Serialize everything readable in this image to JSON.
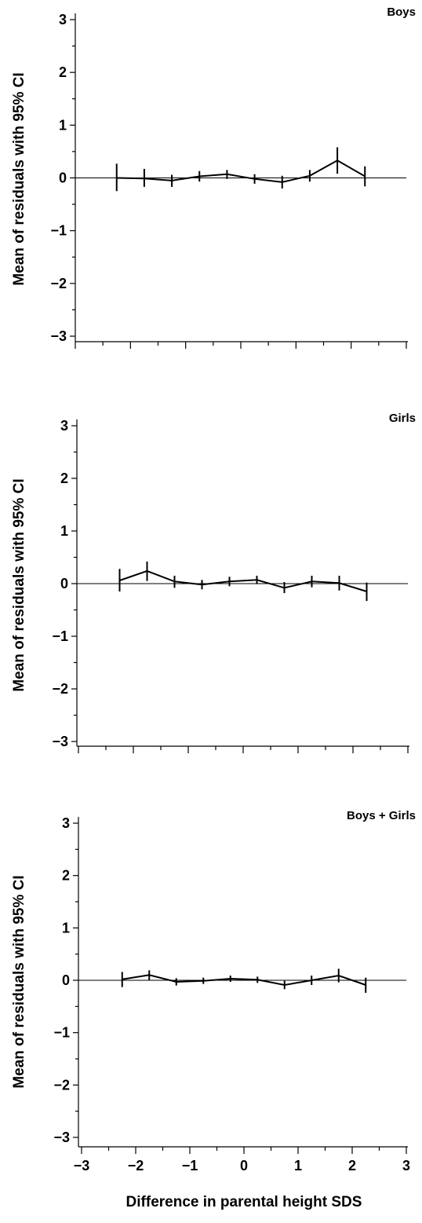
{
  "chart_data": [
    {
      "type": "line",
      "title": "Boys",
      "ylabel": "Mean of residuals with 95% CI",
      "xlabel": "",
      "xlim": [
        -3,
        3
      ],
      "ylim": [
        -3,
        3
      ],
      "yticks": [
        "3",
        "2",
        "1",
        "0",
        "−1",
        "−2",
        "−3"
      ],
      "xticks": [],
      "reference_line_y": 0,
      "series": [
        {
          "x": [
            -2.25,
            -1.75,
            -1.25,
            -0.75,
            -0.25,
            0.25,
            0.75,
            1.25,
            1.75,
            2.25
          ],
          "mean": [
            0.0,
            -0.01,
            -0.05,
            0.03,
            0.07,
            -0.02,
            -0.08,
            0.04,
            0.33,
            0.03
          ],
          "ci_low": [
            -0.25,
            -0.17,
            -0.17,
            -0.07,
            -0.02,
            -0.11,
            -0.2,
            -0.07,
            0.08,
            -0.16
          ],
          "ci_high": [
            0.27,
            0.17,
            0.06,
            0.13,
            0.15,
            0.07,
            0.04,
            0.15,
            0.58,
            0.22
          ]
        }
      ]
    },
    {
      "type": "line",
      "title": "Girls",
      "ylabel": "Mean of residuals with 95% CI",
      "xlabel": "",
      "xlim": [
        -3,
        3
      ],
      "ylim": [
        -3,
        3
      ],
      "yticks": [
        "3",
        "2",
        "1",
        "0",
        "−1",
        "−2",
        "−3"
      ],
      "xticks": [],
      "reference_line_y": 0,
      "series": [
        {
          "x": [
            -2.25,
            -1.75,
            -1.25,
            -0.75,
            -0.25,
            0.25,
            0.75,
            1.25,
            1.75,
            2.25
          ],
          "mean": [
            0.06,
            0.24,
            0.04,
            -0.02,
            0.04,
            0.07,
            -0.08,
            0.04,
            0.01,
            -0.15
          ],
          "ci_low": [
            -0.15,
            0.05,
            -0.08,
            -0.11,
            -0.05,
            -0.01,
            -0.18,
            -0.07,
            -0.13,
            -0.33
          ],
          "ci_high": [
            0.28,
            0.42,
            0.15,
            0.07,
            0.13,
            0.15,
            0.03,
            0.15,
            0.15,
            0.02
          ]
        }
      ]
    },
    {
      "type": "line",
      "title": "Boys + Girls",
      "ylabel": "Mean of residuals with 95% CI",
      "xlabel": "Difference in parental height SDS",
      "xlim": [
        -3,
        3
      ],
      "ylim": [
        -3,
        3
      ],
      "yticks": [
        "3",
        "2",
        "1",
        "0",
        "−1",
        "−2",
        "−3"
      ],
      "xticks": [
        "−3",
        "−2",
        "−1",
        "0",
        "1",
        "2",
        "3"
      ],
      "reference_line_y": 0,
      "series": [
        {
          "x": [
            -2.25,
            -1.75,
            -1.25,
            -0.75,
            -0.25,
            0.25,
            0.75,
            1.25,
            1.75,
            2.25
          ],
          "mean": [
            0.02,
            0.1,
            -0.03,
            -0.01,
            0.03,
            0.01,
            -0.09,
            0.0,
            0.09,
            -0.09
          ],
          "ci_low": [
            -0.13,
            0.0,
            -0.1,
            -0.07,
            -0.03,
            -0.05,
            -0.17,
            -0.09,
            -0.04,
            -0.24
          ],
          "ci_high": [
            0.16,
            0.19,
            0.04,
            0.05,
            0.09,
            0.07,
            -0.01,
            0.09,
            0.22,
            0.05
          ]
        }
      ]
    }
  ]
}
